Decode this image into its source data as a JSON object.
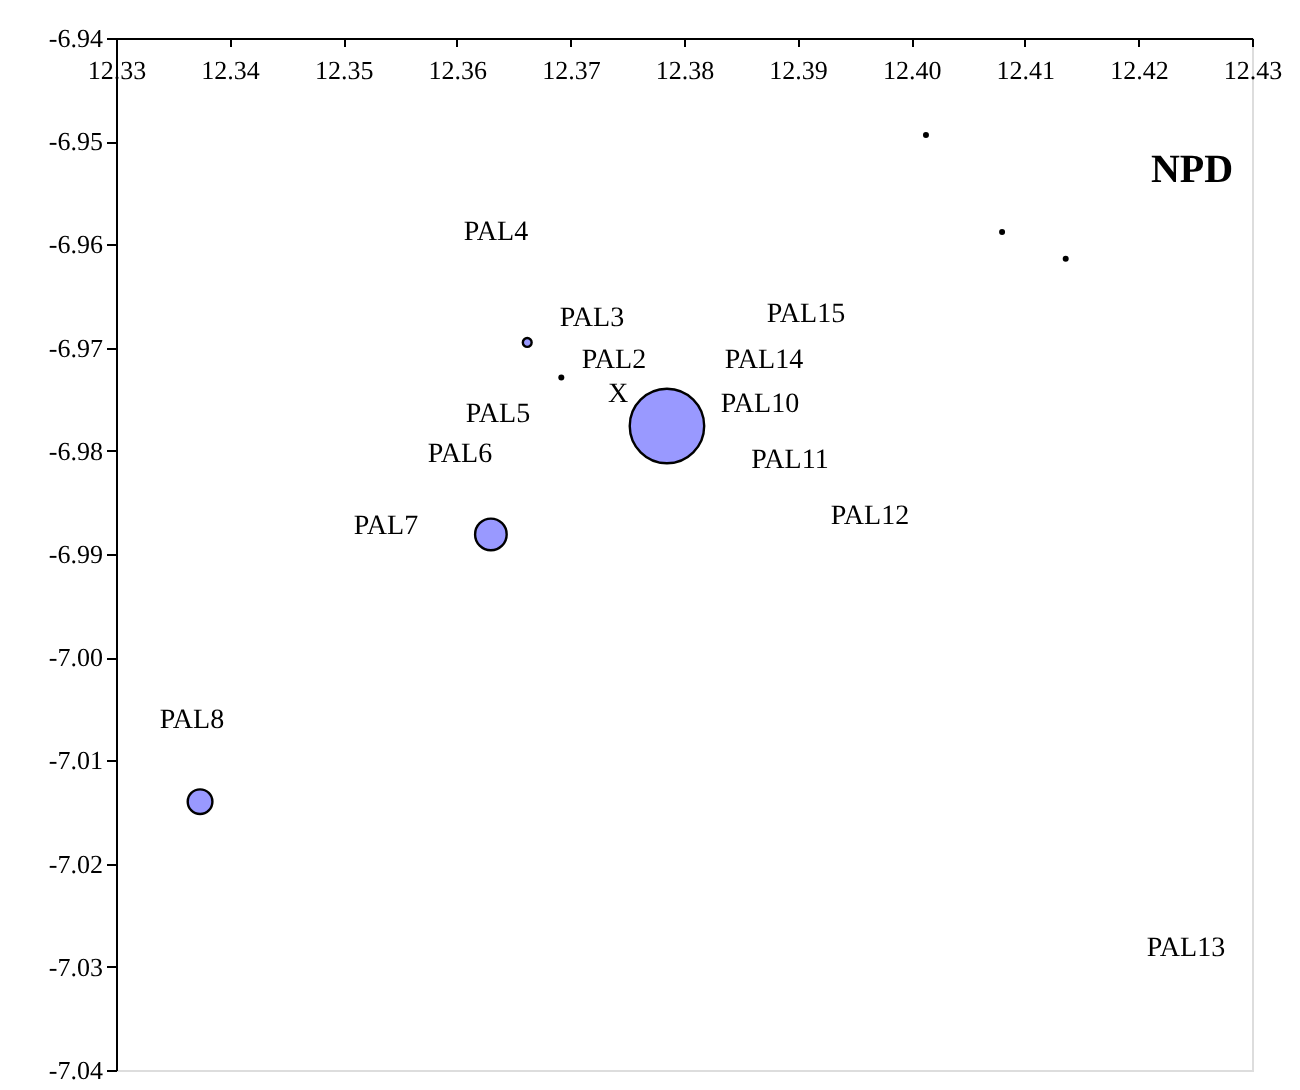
{
  "chart_data": {
    "type": "bubble",
    "x": [
      12.3785,
      12.363,
      12.3374,
      12.3662
    ],
    "series": [
      {
        "color": "#9999ff",
        "values": [
          -6.9776,
          -6.9881,
          -7.014,
          -6.9695
        ],
        "sizes": [
          1,
          0.18,
          0.11,
          0.014
        ]
      },
      {
        "type": "scatter",
        "color": "#000000",
        "x": [
          12.3692,
          12.4013,
          12.408,
          12.4136
        ],
        "values": [
          -6.9729,
          -6.9494,
          -6.9588,
          -6.9614
        ]
      }
    ],
    "xlim": [
      12.33,
      12.43
    ],
    "xticks": [
      12.33,
      12.34,
      12.35,
      12.36,
      12.37,
      12.38,
      12.39,
      {
        "value": 12.4,
        "label": "12.40"
      },
      12.41,
      12.42,
      12.43
    ],
    "ylim": [
      -7.04,
      -6.94
    ],
    "yticks": [
      -6.94,
      -6.95,
      -6.96,
      -6.97,
      -6.98,
      -6.99,
      {
        "value": -7.0,
        "label": "-7.00"
      },
      -7.01,
      -7.02,
      -7.03,
      -7.04
    ],
    "grid": false,
    "legend": false,
    "marker": "circle",
    "annotations": [
      "NPD",
      "PAL4",
      "PAL3",
      "PAL2",
      "X",
      "PAL5",
      "PAL6",
      "PAL7",
      "PAL15",
      "PAL14",
      "PAL10",
      "PAL11",
      "PAL12",
      "PAL8",
      "PAL13"
    ]
  }
}
